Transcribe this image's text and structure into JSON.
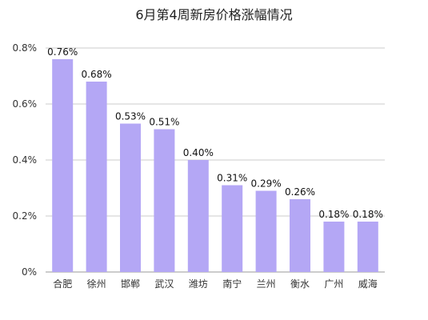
{
  "chart_data": {
    "type": "bar",
    "title": "6月第4周新房价格涨幅情况",
    "xlabel": "",
    "ylabel": "",
    "categories": [
      "合肥",
      "徐州",
      "邯郸",
      "武汉",
      "潍坊",
      "南宁",
      "兰州",
      "衡水",
      "广州",
      "威海"
    ],
    "values": [
      0.76,
      0.68,
      0.53,
      0.51,
      0.4,
      0.31,
      0.29,
      0.26,
      0.18,
      0.18
    ],
    "data_labels": [
      "0.76%",
      "0.68%",
      "0.53%",
      "0.51%",
      "0.40%",
      "0.31%",
      "0.29%",
      "0.26%",
      "0.18%",
      "0.18%"
    ],
    "ylim": [
      0,
      0.8
    ],
    "yticks": [
      0,
      0.2,
      0.4,
      0.6,
      0.8
    ],
    "ytick_labels": [
      "0%",
      "0.2%",
      "0.4%",
      "0.6%",
      "0.8%"
    ],
    "grid": true,
    "legend": "none",
    "colors": {
      "bar": "#b4a7f5",
      "grid": "#cccccc",
      "axis": "#999999"
    }
  }
}
